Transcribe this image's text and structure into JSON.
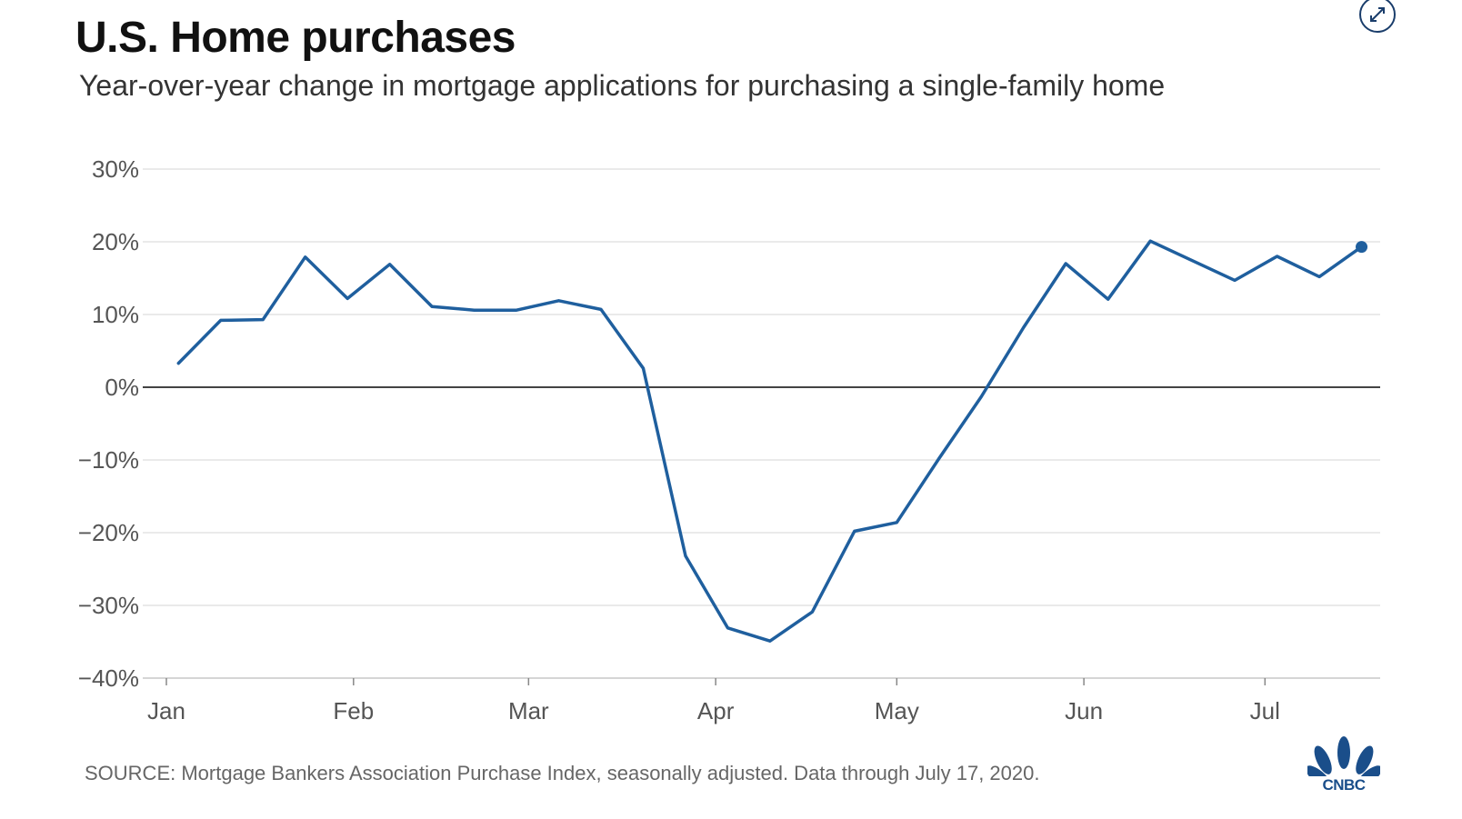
{
  "header": {
    "title": "U.S. Home purchases",
    "subtitle": "Year-over-year change in mortgage applications for purchasing a single-family home"
  },
  "footer": {
    "source": "SOURCE: Mortgage Bankers Association Purchase Index, seasonally adjusted. Data through July 17, 2020.",
    "logo_text": "CNBC"
  },
  "icons": {
    "expand": "expand-icon",
    "logo": "cnbc-peacock-logo"
  },
  "colors": {
    "line": "#1f5f9e",
    "zero_line": "#444444",
    "grid": "#e4e4e4",
    "logo": "#1a4e8a"
  },
  "chart_data": {
    "type": "line",
    "title": "U.S. Home purchases",
    "subtitle": "Year-over-year change in mortgage applications for purchasing a single-family home",
    "xlabel": "",
    "ylabel": "",
    "ylim": [
      -40,
      30
    ],
    "yticks": [
      30,
      20,
      10,
      0,
      -10,
      -20,
      -30,
      -40
    ],
    "ytick_labels": [
      "30%",
      "20%",
      "10%",
      "0%",
      "−10%",
      "−20%",
      "−30%",
      "−40%"
    ],
    "grid": true,
    "x_axis_type": "date",
    "xlim": [
      "2020-01-01",
      "2020-07-24"
    ],
    "month_ticks": [
      {
        "date": "2020-01-01",
        "label": "Jan"
      },
      {
        "date": "2020-02-01",
        "label": "Feb"
      },
      {
        "date": "2020-03-01",
        "label": "Mar"
      },
      {
        "date": "2020-04-01",
        "label": "Apr"
      },
      {
        "date": "2020-05-01",
        "label": "May"
      },
      {
        "date": "2020-06-01",
        "label": "Jun"
      },
      {
        "date": "2020-07-01",
        "label": "Jul"
      }
    ],
    "series": [
      {
        "dates": [
          "2020-01-03",
          "2020-01-10",
          "2020-01-17",
          "2020-01-24",
          "2020-01-31",
          "2020-02-07",
          "2020-02-14",
          "2020-02-21",
          "2020-02-28",
          "2020-03-06",
          "2020-03-13",
          "2020-03-20",
          "2020-03-27",
          "2020-04-03",
          "2020-04-10",
          "2020-04-17",
          "2020-04-24",
          "2020-05-01",
          "2020-05-08",
          "2020-05-15",
          "2020-05-22",
          "2020-05-29",
          "2020-06-05",
          "2020-06-12",
          "2020-06-19",
          "2020-06-26",
          "2020-07-03",
          "2020-07-10",
          "2020-07-17"
        ],
        "values": [
          3.3,
          9.2,
          9.3,
          17.9,
          12.2,
          16.9,
          11.1,
          10.6,
          10.6,
          11.9,
          10.7,
          2.6,
          -23.2,
          -33.1,
          -34.9,
          -30.9,
          -19.8,
          -18.6,
          -9.8,
          -1.3,
          8.2,
          17.0,
          12.1,
          20.1,
          17.4,
          14.7,
          18.0,
          15.2,
          19.3
        ]
      }
    ],
    "last_point_marker": true
  }
}
